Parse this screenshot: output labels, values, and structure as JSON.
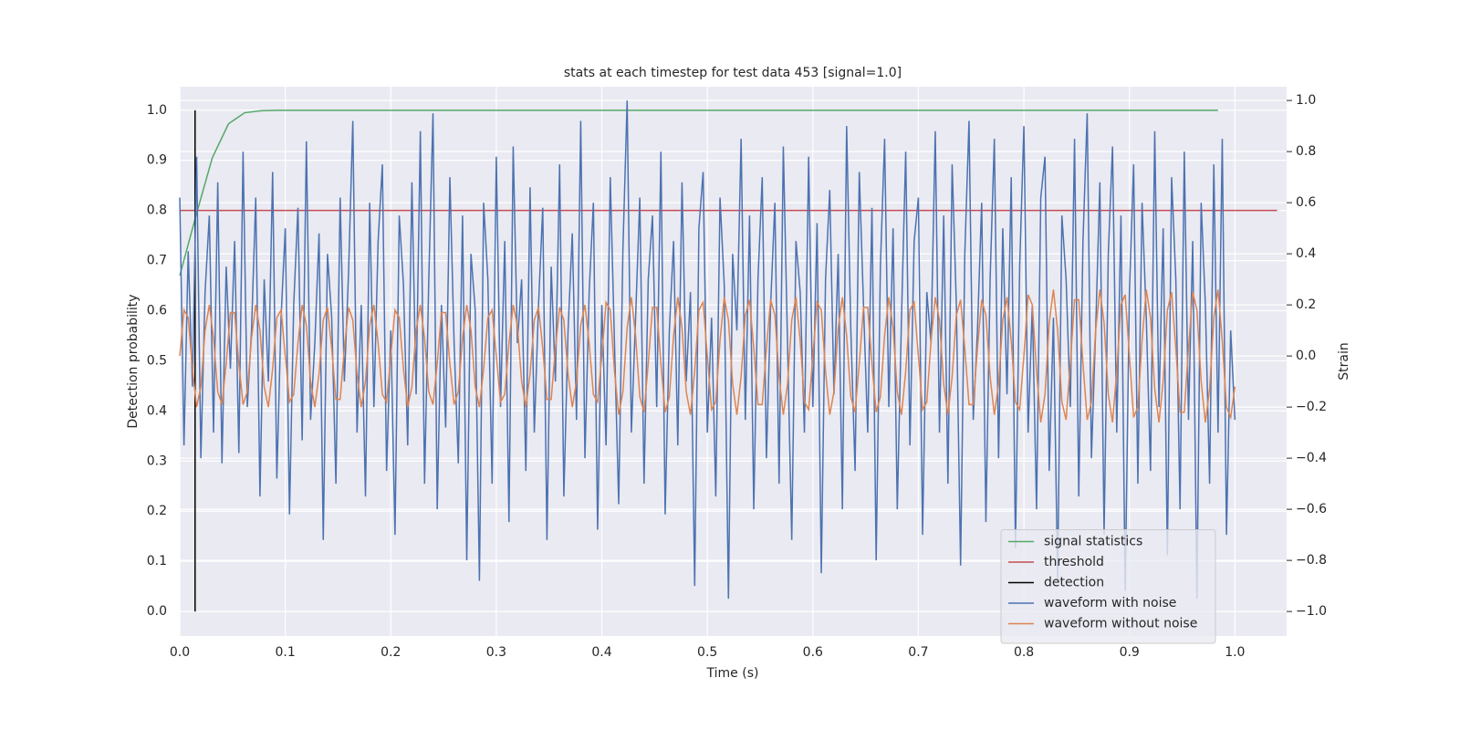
{
  "chart_data": {
    "type": "line",
    "title": "stats at each timestep for test data 453 [signal=1.0]",
    "xlabel": "Time (s)",
    "ylabel": "Detection probability",
    "y2label": "Strain",
    "xlim": [
      0,
      1.049
    ],
    "ylim": [
      -0.049,
      1.047
    ],
    "y2lim": [
      -1.096,
      1.054
    ],
    "xticks": [
      {
        "value": 0,
        "label": "0.0"
      },
      0.1,
      0.2,
      0.3,
      0.4,
      0.5,
      0.6,
      0.7,
      0.8,
      0.9,
      {
        "value": 1,
        "label": "1.0"
      }
    ],
    "yticks": [
      {
        "value": 0,
        "label": "0.0"
      },
      0.1,
      0.2,
      0.3,
      0.4,
      0.5,
      0.6,
      0.7,
      0.8,
      0.9,
      {
        "value": 1,
        "label": "1.0"
      }
    ],
    "y2ticks": [
      {
        "value": -1,
        "label": "−1.0"
      },
      {
        "value": -0.8,
        "label": "−0.8"
      },
      {
        "value": -0.6,
        "label": "−0.6"
      },
      {
        "value": -0.4,
        "label": "−0.4"
      },
      {
        "value": -0.2,
        "label": "−0.2"
      },
      {
        "value": 0,
        "label": "0.0"
      },
      0.2,
      0.4,
      0.6,
      0.8,
      {
        "value": 1,
        "label": "1.0"
      }
    ],
    "grid": true,
    "legend": "lower right",
    "x": [
      0,
      0.004,
      0.008,
      0.012,
      0.016,
      0.02,
      0.024,
      0.028,
      0.032,
      0.036,
      0.04,
      0.044,
      0.048,
      0.052,
      0.056,
      0.06,
      0.064,
      0.068,
      0.072,
      0.076,
      0.08,
      0.084,
      0.088,
      0.092,
      0.096,
      0.1,
      0.104,
      0.108,
      0.112,
      0.116,
      0.12,
      0.124,
      0.128,
      0.132,
      0.136,
      0.14,
      0.144,
      0.148,
      0.152,
      0.156,
      0.16,
      0.164,
      0.168,
      0.172,
      0.176,
      0.18,
      0.184,
      0.188,
      0.192,
      0.196,
      0.2,
      0.204,
      0.208,
      0.212,
      0.216,
      0.22,
      0.224,
      0.228,
      0.232,
      0.236,
      0.24,
      0.244,
      0.248,
      0.252,
      0.256,
      0.26,
      0.264,
      0.268,
      0.272,
      0.276,
      0.28,
      0.284,
      0.288,
      0.292,
      0.296,
      0.3,
      0.304,
      0.308,
      0.312,
      0.316,
      0.32,
      0.324,
      0.328,
      0.332,
      0.336,
      0.34,
      0.344,
      0.348,
      0.352,
      0.356,
      0.36,
      0.364,
      0.368,
      0.372,
      0.376,
      0.38,
      0.384,
      0.388,
      0.392,
      0.396,
      0.4,
      0.404,
      0.408,
      0.412,
      0.416,
      0.42,
      0.424,
      0.428,
      0.432,
      0.436,
      0.44,
      0.444,
      0.448,
      0.452,
      0.456,
      0.46,
      0.464,
      0.468,
      0.472,
      0.476,
      0.48,
      0.484,
      0.488,
      0.492,
      0.496,
      0.5,
      0.504,
      0.508,
      0.512,
      0.516,
      0.52,
      0.524,
      0.528,
      0.532,
      0.536,
      0.54,
      0.544,
      0.548,
      0.552,
      0.556,
      0.56,
      0.564,
      0.568,
      0.572,
      0.576,
      0.58,
      0.584,
      0.588,
      0.592,
      0.596,
      0.6,
      0.604,
      0.608,
      0.612,
      0.616,
      0.62,
      0.624,
      0.628,
      0.632,
      0.636,
      0.64,
      0.644,
      0.648,
      0.652,
      0.656,
      0.66,
      0.664,
      0.668,
      0.672,
      0.676,
      0.68,
      0.684,
      0.688,
      0.692,
      0.696,
      0.7,
      0.704,
      0.708,
      0.712,
      0.716,
      0.72,
      0.724,
      0.728,
      0.732,
      0.736,
      0.74,
      0.744,
      0.748,
      0.752,
      0.756,
      0.76,
      0.764,
      0.768,
      0.772,
      0.776,
      0.78,
      0.784,
      0.788,
      0.792,
      0.796,
      0.8,
      0.804,
      0.808,
      0.812,
      0.816,
      0.82,
      0.824,
      0.828,
      0.832,
      0.836,
      0.84,
      0.844,
      0.848,
      0.852,
      0.856,
      0.86,
      0.864,
      0.868,
      0.872,
      0.876,
      0.88,
      0.884,
      0.888,
      0.892,
      0.896,
      0.9,
      0.904,
      0.908,
      0.912,
      0.916,
      0.92,
      0.924,
      0.928,
      0.932,
      0.936,
      0.94,
      0.944,
      0.948,
      0.952,
      0.956,
      0.96,
      0.964,
      0.968,
      0.972,
      0.976,
      0.98,
      0.984,
      0.988,
      0.992,
      0.996,
      1.0
    ],
    "series": [
      {
        "name": "signal statistics",
        "color": "#55a868",
        "x": [
          0,
          0.0154,
          0.0308,
          0.0462,
          0.0615,
          0.0769,
          0.0923,
          0.984
        ],
        "values": [
          0.67,
          0.79,
          0.905,
          0.973,
          0.995,
          0.999,
          1.0,
          1.0
        ]
      },
      {
        "name": "threshold",
        "color": "#c44e52",
        "x": [
          0,
          1.04
        ],
        "values": [
          0.8,
          0.8
        ]
      },
      {
        "name": "detection",
        "color": "#000000",
        "x": [
          0.0145,
          0.0145
        ],
        "values": [
          0,
          1
        ]
      },
      {
        "name": "waveform with noise",
        "color": "#4c72b0",
        "axis": "y2",
        "values": [
          0.62,
          -0.35,
          0.41,
          -0.12,
          0.78,
          -0.4,
          0.25,
          0.55,
          -0.3,
          0.68,
          -0.42,
          0.35,
          -0.05,
          0.45,
          -0.38,
          0.8,
          -0.2,
          0.1,
          0.62,
          -0.55,
          0.3,
          -0.1,
          0.72,
          -0.48,
          0.15,
          0.5,
          -0.62,
          0.2,
          0.58,
          -0.33,
          0.84,
          -0.25,
          0.05,
          0.48,
          -0.72,
          0.4,
          0.15,
          -0.5,
          0.62,
          -0.1,
          0.33,
          0.92,
          -0.3,
          0.2,
          -0.55,
          0.6,
          -0.2,
          0.45,
          0.75,
          -0.45,
          0.1,
          -0.7,
          0.55,
          0.28,
          -0.35,
          0.68,
          -0.15,
          0.88,
          -0.5,
          0.3,
          0.95,
          -0.6,
          0.2,
          -0.28,
          0.7,
          0.05,
          -0.42,
          0.55,
          -0.8,
          0.4,
          0.18,
          -0.88,
          0.6,
          0.3,
          -0.5,
          0.78,
          -0.2,
          0.45,
          -0.65,
          0.82,
          0.05,
          0.3,
          -0.45,
          0.66,
          -0.3,
          0.2,
          0.58,
          -0.72,
          0.35,
          -0.1,
          0.75,
          -0.55,
          0.1,
          0.48,
          -0.25,
          0.92,
          -0.4,
          0.25,
          0.6,
          -0.68,
          0.2,
          -0.35,
          0.7,
          0.05,
          -0.58,
          0.42,
          1.0,
          -0.3,
          0.15,
          0.62,
          -0.5,
          0.3,
          0.55,
          -0.2,
          0.8,
          -0.62,
          0.1,
          0.45,
          -0.35,
          0.68,
          -0.1,
          0.25,
          -0.9,
          0.5,
          0.72,
          -0.3,
          0.15,
          -0.55,
          0.62,
          0.28,
          -0.95,
          0.4,
          0.1,
          0.85,
          -0.25,
          0.55,
          -0.6,
          0.3,
          0.7,
          -0.4,
          0.2,
          0.6,
          -0.5,
          0.82,
          0.05,
          -0.72,
          0.45,
          0.25,
          -0.3,
          0.78,
          -0.2,
          0.52,
          -0.85,
          0.3,
          0.65,
          -0.15,
          0.4,
          -0.6,
          0.9,
          0.1,
          -0.45,
          0.72,
          0.2,
          -0.3,
          0.58,
          -0.8,
          0.35,
          0.85,
          -0.2,
          0.5,
          -0.6,
          0.15,
          0.8,
          -0.35,
          0.45,
          0.62,
          -0.7,
          0.25,
          0.05,
          0.88,
          -0.3,
          0.55,
          -0.5,
          0.75,
          0.2,
          -0.82,
          0.4,
          0.92,
          -0.25,
          0.1,
          0.6,
          -0.65,
          0.3,
          0.85,
          -0.4,
          0.5,
          -0.15,
          0.7,
          -0.75,
          0.35,
          0.9,
          -0.3,
          0.2,
          -0.6,
          0.62,
          0.78,
          -0.45,
          0.15,
          -0.88,
          0.55,
          0.3,
          -0.2,
          0.85,
          -0.55,
          0.45,
          0.95,
          -0.4,
          0.1,
          0.68,
          -0.7,
          0.4,
          0.82,
          -0.3,
          0.55,
          -0.92,
          0.25,
          0.75,
          -0.5,
          0.6,
          0.15,
          -0.45,
          0.88,
          -0.2,
          0.5,
          -0.78,
          0.7,
          0.3,
          -0.6,
          0.8,
          -0.25,
          0.45,
          -0.95,
          0.6,
          0.2,
          -0.5,
          0.75,
          -0.3,
          0.85,
          -0.7,
          0.1,
          -0.25
        ]
      },
      {
        "name": "waveform without noise",
        "color": "#dd8452",
        "axis": "y2",
        "values": [
          0,
          0.18,
          0.15,
          -0.05,
          -0.2,
          -0.12,
          0.1,
          0.2,
          0.07,
          -0.14,
          -0.19,
          -0.03,
          0.17,
          0.17,
          -0.03,
          -0.19,
          -0.14,
          0.07,
          0.2,
          0.1,
          -0.12,
          -0.2,
          -0.05,
          0.15,
          0.18,
          0,
          -0.18,
          -0.15,
          0.05,
          0.2,
          0.12,
          -0.1,
          -0.2,
          -0.07,
          0.14,
          0.19,
          0.03,
          -0.17,
          -0.17,
          0.03,
          0.19,
          0.14,
          -0.07,
          -0.2,
          -0.1,
          0.12,
          0.2,
          0.05,
          -0.15,
          -0.18,
          0,
          0.18,
          0.15,
          -0.05,
          -0.2,
          -0.12,
          0.1,
          0.2,
          0.07,
          -0.14,
          -0.19,
          -0.03,
          0.17,
          0.17,
          -0.03,
          -0.19,
          -0.14,
          0.07,
          0.2,
          0.1,
          -0.12,
          -0.2,
          -0.05,
          0.15,
          0.18,
          0,
          -0.18,
          -0.15,
          0.05,
          0.2,
          0.12,
          -0.1,
          -0.2,
          -0.07,
          0.14,
          0.19,
          0.03,
          -0.17,
          -0.17,
          0.03,
          0.19,
          0.14,
          -0.07,
          -0.2,
          -0.1,
          0.12,
          0.2,
          0.05,
          -0.15,
          -0.18,
          0,
          0.21,
          0.18,
          -0.06,
          -0.23,
          -0.14,
          0.11,
          0.23,
          0.08,
          -0.16,
          -0.22,
          -0.03,
          0.19,
          0.19,
          -0.03,
          -0.22,
          -0.16,
          0.08,
          0.23,
          0.11,
          -0.14,
          -0.23,
          -0.06,
          0.18,
          0.21,
          0,
          -0.21,
          -0.18,
          0.06,
          0.23,
          0.14,
          -0.11,
          -0.23,
          -0.08,
          0.16,
          0.22,
          0.03,
          -0.19,
          -0.19,
          0.03,
          0.22,
          0.16,
          -0.08,
          -0.23,
          -0.11,
          0.14,
          0.23,
          0.06,
          -0.18,
          -0.21,
          0,
          0.21,
          0.18,
          -0.06,
          -0.23,
          -0.14,
          0.11,
          0.23,
          0.08,
          -0.16,
          -0.22,
          -0.03,
          0.19,
          0.19,
          -0.03,
          -0.22,
          -0.16,
          0.08,
          0.23,
          0.11,
          -0.14,
          -0.23,
          -0.06,
          0.18,
          0.21,
          0,
          -0.21,
          -0.18,
          0.06,
          0.23,
          0.14,
          -0.11,
          -0.23,
          -0.08,
          0.16,
          0.22,
          0.03,
          -0.19,
          -0.19,
          0.03,
          0.22,
          0.16,
          -0.08,
          -0.23,
          -0.11,
          0.14,
          0.23,
          0.06,
          -0.18,
          -0.21,
          0,
          0.24,
          0.2,
          -0.06,
          -0.26,
          -0.15,
          0.13,
          0.26,
          0.1,
          -0.18,
          -0.25,
          -0.03,
          0.22,
          0.22,
          -0.03,
          -0.25,
          -0.18,
          0.1,
          0.26,
          0.13,
          -0.15,
          -0.26,
          -0.06,
          0.2,
          0.24,
          0,
          -0.24,
          -0.2,
          0.06,
          0.26,
          0.15,
          -0.13,
          -0.26,
          -0.1,
          0.18,
          0.25,
          0.03,
          -0.22,
          -0.22,
          0.03,
          0.25,
          0.18,
          -0.1,
          -0.26,
          -0.13,
          0.15,
          0.26,
          0.06,
          -0.2,
          -0.24,
          -0.12
        ]
      }
    ]
  }
}
